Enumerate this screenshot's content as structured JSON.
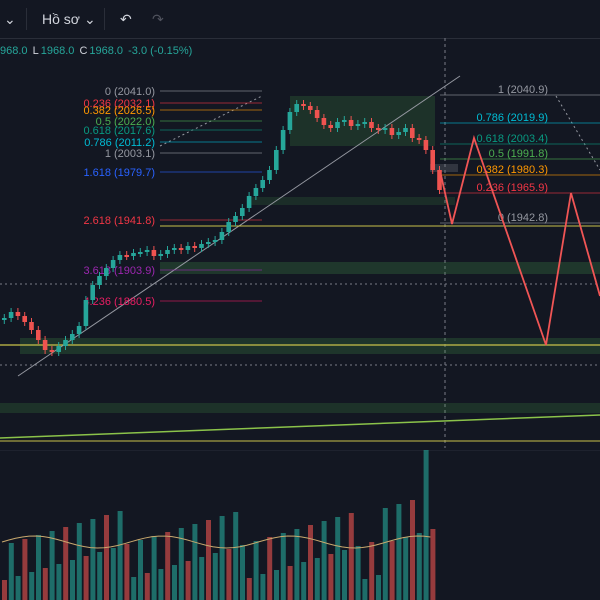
{
  "toolbar": {
    "menu_chevron": "⌄",
    "profile_label": "Hồ sơ",
    "profile_chevron": "⌄",
    "undo_icon": "↶",
    "redo_icon": "↷"
  },
  "ohlc": {
    "open": "968.0",
    "low_prefix": "L",
    "low": "1968.0",
    "close_prefix": "C",
    "close": "1968.0",
    "change": "-3.0 (-0.15%)"
  },
  "colors": {
    "background": "#131722",
    "bull": "#26a69a",
    "bear": "#ef5350",
    "fib_grey": "#9598a1",
    "fib_red": "#f23645",
    "fib_orange": "#ff9800",
    "fib_green": "#4caf50",
    "fib_teal": "#089981",
    "fib_blue": "#2962ff",
    "fib_purple": "#9c27b0",
    "fib_yellow": "#c9c24a",
    "path_red": "#f05555"
  },
  "fib_left": [
    {
      "label": "0 (2041.0)",
      "color": "#9598a1"
    },
    {
      "label": "0.236 (2032.1)",
      "color": "#f23645"
    },
    {
      "label": "0.382 (2026.5)",
      "color": "#ff9800"
    },
    {
      "label": "0.5 (2022.0)",
      "color": "#4caf50"
    },
    {
      "label": "0.618 (2017.6)",
      "color": "#089981"
    },
    {
      "label": "0.786 (2011.2)",
      "color": "#00bcd4"
    },
    {
      "label": "1 (2003.1)",
      "color": "#9598a1"
    },
    {
      "label": "1.618 (1979.7)",
      "color": "#2962ff"
    },
    {
      "label": "2.618 (1941.8)",
      "color": "#f23645"
    },
    {
      "label": "3.618 (1903.9)",
      "color": "#9c27b0"
    },
    {
      "label": "4.236 (1880.5)",
      "color": "#e91e63"
    }
  ],
  "fib_right": [
    {
      "label": "1 (2040.9)",
      "color": "#9598a1"
    },
    {
      "label": "0.786 (2019.9)",
      "color": "#00bcd4"
    },
    {
      "label": "0.618 (2003.4)",
      "color": "#089981"
    },
    {
      "label": "0.5 (1991.8)",
      "color": "#4caf50"
    },
    {
      "label": "0.382 (1980.3)",
      "color": "#ff9800"
    },
    {
      "label": "0.236 (1965.9)",
      "color": "#f23645"
    },
    {
      "label": "0 (1942.8)",
      "color": "#9598a1"
    }
  ]
}
